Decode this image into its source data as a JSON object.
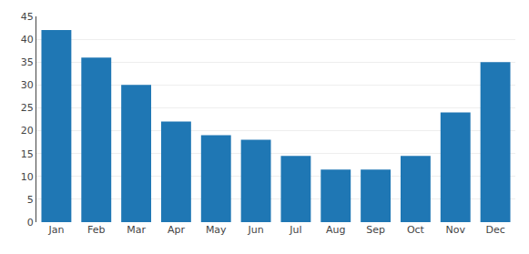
{
  "chart_data": {
    "type": "bar",
    "categories": [
      "Jan",
      "Feb",
      "Mar",
      "Apr",
      "May",
      "Jun",
      "Jul",
      "Aug",
      "Sep",
      "Oct",
      "Nov",
      "Dec"
    ],
    "values": [
      42,
      36,
      30,
      22,
      19,
      18,
      14.5,
      11.5,
      11.5,
      14.5,
      24,
      35
    ],
    "ylim": [
      0,
      45
    ],
    "yticks": [
      0,
      5,
      10,
      15,
      20,
      25,
      30,
      35,
      40,
      45
    ],
    "grid": true
  }
}
